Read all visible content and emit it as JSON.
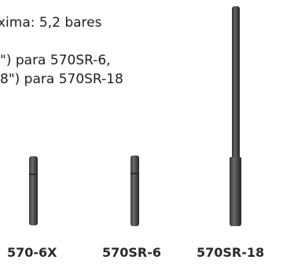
{
  "specs": {
    "pressure_text": "xima: 5,2 bares",
    "length_570sr6_text": "\") para 570SR-6,",
    "length_570sr18_text": "8\") para 570SR-18"
  },
  "products": [
    {
      "model": "570-6X"
    },
    {
      "model": "570SR-6"
    },
    {
      "model": "570SR-18"
    }
  ]
}
